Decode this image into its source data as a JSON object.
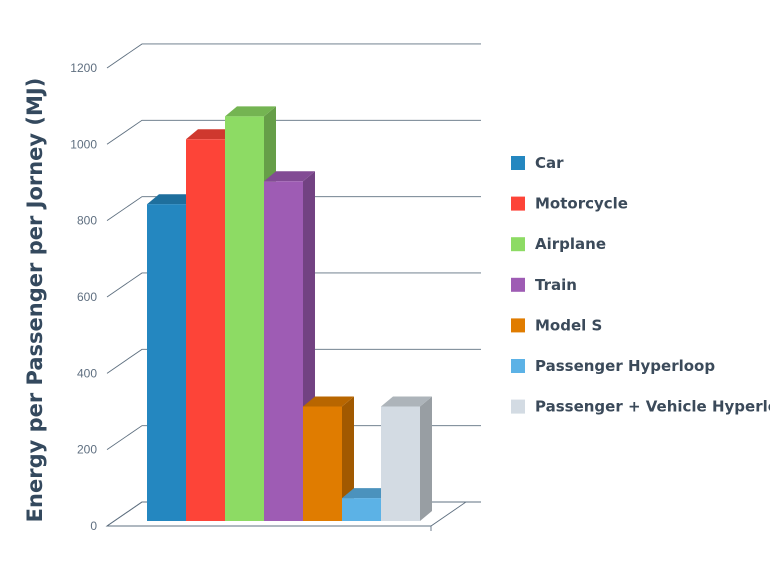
{
  "chart_data": {
    "type": "bar",
    "style": "3d",
    "title": "",
    "ylabel": "Energy per Passenger per Jorney (MJ)",
    "xlabel": "",
    "ylim": [
      0,
      1200
    ],
    "yticks": [
      0,
      200,
      400,
      600,
      800,
      1000,
      1200
    ],
    "grid": true,
    "legend_position": "right",
    "series": [
      {
        "name": "Car",
        "value": 830,
        "color": "#2487c0"
      },
      {
        "name": "Motorcycle",
        "value": 1000,
        "color": "#fd4438"
      },
      {
        "name": "Airplane",
        "value": 1060,
        "color": "#8ddb64"
      },
      {
        "name": "Train",
        "value": 890,
        "color": "#9e5cb4"
      },
      {
        "name": "Model S",
        "value": 300,
        "color": "#e07c00"
      },
      {
        "name": "Passenger Hyperloop",
        "value": 60,
        "color": "#5cb2e6"
      },
      {
        "name": "Passenger + Vehicle Hyperloop",
        "value": 300,
        "color": "#d3dbe3"
      }
    ]
  }
}
